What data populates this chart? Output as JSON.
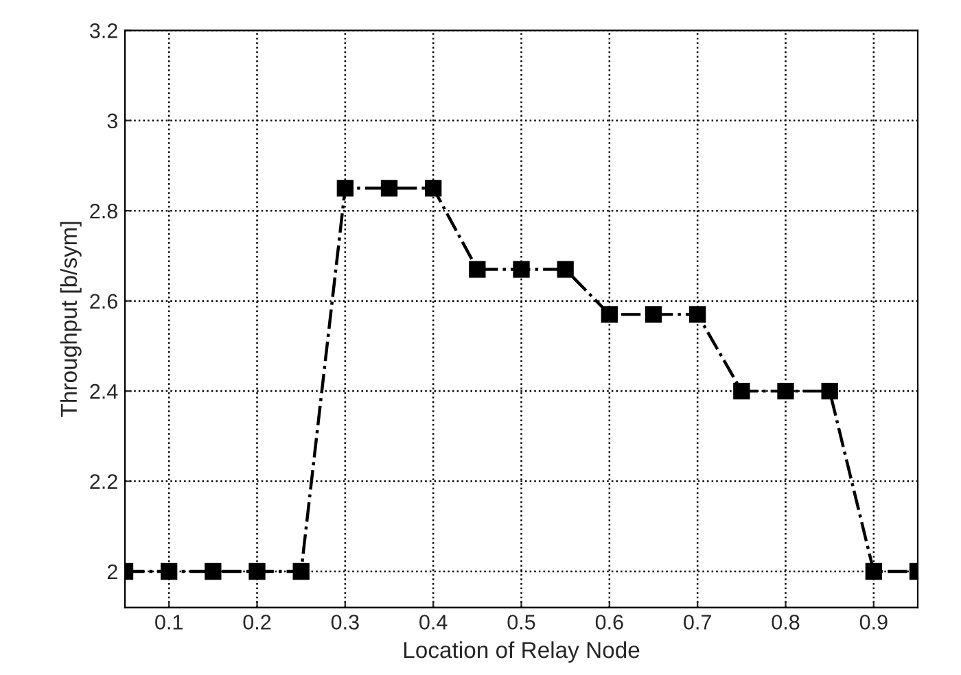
{
  "chart_data": {
    "type": "line",
    "xlabel": "Location of Relay Node",
    "ylabel": "Throughput [b/sym]",
    "x": [
      0.05,
      0.1,
      0.15,
      0.2,
      0.25,
      0.3,
      0.35,
      0.4,
      0.45,
      0.5,
      0.55,
      0.6,
      0.65,
      0.7,
      0.75,
      0.8,
      0.85,
      0.9,
      0.95
    ],
    "series": [
      {
        "color": "#000000",
        "values": [
          2,
          2,
          2,
          2,
          2,
          2.85,
          2.85,
          2.85,
          2.67,
          2.67,
          2.67,
          2.57,
          2.57,
          2.57,
          2.4,
          2.4,
          2.4,
          2,
          2
        ]
      }
    ],
    "xlim": [
      0.05,
      0.95
    ],
    "xticks": [
      0.1,
      0.2,
      0.3,
      0.4,
      0.5,
      0.6,
      0.7,
      0.8,
      0.9
    ],
    "ylim": [
      1.92,
      3.2
    ],
    "yticks": [
      2,
      2.2,
      2.4,
      2.6,
      2.8,
      3,
      3.2
    ],
    "grid": true,
    "marker": "square",
    "line_style": "dashdot"
  }
}
